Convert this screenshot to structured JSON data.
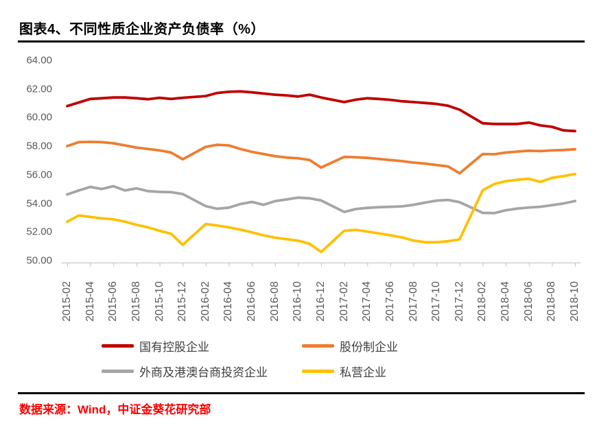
{
  "page": {
    "title": "图表4、不同性质企业资产负债率（%）",
    "source": "数据来源：Wind，中证金葵花研究部"
  },
  "colors": {
    "state_owned": "#C00000",
    "joint_stock": "#ED7D31",
    "foreign_hmt": "#A5A5A5",
    "private": "#FFC000",
    "axis_text": "#595959",
    "axis_line": "#BFBFBF",
    "rule": "#000000",
    "source_text": "#FF0000"
  },
  "chart_data": {
    "type": "line",
    "title": "图表4、不同性质企业资产负债率（%）",
    "xlabel": "",
    "ylabel": "",
    "ylim": [
      50,
      64
    ],
    "y_ticks": [
      "64.00",
      "62.00",
      "60.00",
      "58.00",
      "56.00",
      "54.00",
      "52.00",
      "50.00"
    ],
    "grid": false,
    "legend_position": "bottom",
    "x_note": "monthly data, January not published (line connects Dec to Feb)",
    "x": [
      "2015-02",
      "2015-03",
      "2015-04",
      "2015-05",
      "2015-06",
      "2015-07",
      "2015-08",
      "2015-09",
      "2015-10",
      "2015-11",
      "2015-12",
      "2016-02",
      "2016-03",
      "2016-04",
      "2016-05",
      "2016-06",
      "2016-07",
      "2016-08",
      "2016-09",
      "2016-10",
      "2016-11",
      "2016-12",
      "2017-02",
      "2017-03",
      "2017-04",
      "2017-05",
      "2017-06",
      "2017-07",
      "2017-08",
      "2017-09",
      "2017-10",
      "2017-11",
      "2017-12",
      "2018-02",
      "2018-03",
      "2018-04",
      "2018-05",
      "2018-06",
      "2018-07",
      "2018-08",
      "2018-09",
      "2018-10"
    ],
    "x_tick_labels": [
      "2015-02",
      "2015-04",
      "2015-06",
      "2015-08",
      "2015-10",
      "2015-12",
      "2016-02",
      "2016-04",
      "2016-06",
      "2016-08",
      "2016-10",
      "2016-12",
      "2017-02",
      "2017-04",
      "2017-06",
      "2017-08",
      "2017-10",
      "2017-12",
      "2018-02",
      "2018-04",
      "2018-06",
      "2018-08",
      "2018-10"
    ],
    "series": [
      {
        "key": "state-owned",
        "name": "国有控股企业",
        "color": "#C00000",
        "values": [
          60.8,
          61.05,
          61.3,
          61.35,
          61.4,
          61.4,
          61.35,
          61.28,
          61.38,
          61.3,
          61.38,
          61.5,
          61.72,
          61.8,
          61.83,
          61.76,
          61.68,
          61.6,
          61.55,
          61.47,
          61.6,
          61.4,
          61.08,
          61.25,
          61.35,
          61.3,
          61.24,
          61.14,
          61.08,
          61.02,
          60.95,
          60.82,
          60.55,
          59.6,
          59.55,
          59.55,
          59.55,
          59.65,
          59.45,
          59.35,
          59.1,
          59.05
        ]
      },
      {
        "key": "joint-stock",
        "name": "股份制企业",
        "color": "#ED7D31",
        "values": [
          58.0,
          58.28,
          58.3,
          58.28,
          58.2,
          58.05,
          57.9,
          57.8,
          57.7,
          57.55,
          57.08,
          57.95,
          58.1,
          58.05,
          57.8,
          57.6,
          57.45,
          57.3,
          57.2,
          57.15,
          57.03,
          56.5,
          57.25,
          57.22,
          57.18,
          57.1,
          57.03,
          56.95,
          56.85,
          56.78,
          56.68,
          56.58,
          56.1,
          57.45,
          57.43,
          57.55,
          57.62,
          57.68,
          57.65,
          57.7,
          57.73,
          57.78
        ]
      },
      {
        "key": "foreign-hmt",
        "name": "外商及港澳台商投资企业",
        "color": "#A5A5A5",
        "values": [
          54.62,
          54.9,
          55.15,
          55.0,
          55.2,
          54.9,
          55.05,
          54.85,
          54.8,
          54.78,
          54.65,
          53.8,
          53.62,
          53.7,
          53.95,
          54.1,
          53.9,
          54.15,
          54.27,
          54.4,
          54.35,
          54.2,
          53.4,
          53.6,
          53.68,
          53.73,
          53.76,
          53.79,
          53.9,
          54.05,
          54.19,
          54.24,
          54.08,
          53.33,
          53.32,
          53.52,
          53.63,
          53.71,
          53.76,
          53.87,
          53.99,
          54.16
        ]
      },
      {
        "key": "private",
        "name": "私营企业",
        "color": "#FFC000",
        "values": [
          52.72,
          53.15,
          53.05,
          52.95,
          52.88,
          52.72,
          52.5,
          52.32,
          52.08,
          51.87,
          51.1,
          52.55,
          52.45,
          52.32,
          52.16,
          51.97,
          51.76,
          51.6,
          51.49,
          51.39,
          51.17,
          50.6,
          52.08,
          52.15,
          52.03,
          51.9,
          51.76,
          51.62,
          51.4,
          51.28,
          51.28,
          51.35,
          51.48,
          54.92,
          55.35,
          55.55,
          55.65,
          55.72,
          55.5,
          55.78,
          55.9,
          56.05
        ]
      }
    ]
  }
}
